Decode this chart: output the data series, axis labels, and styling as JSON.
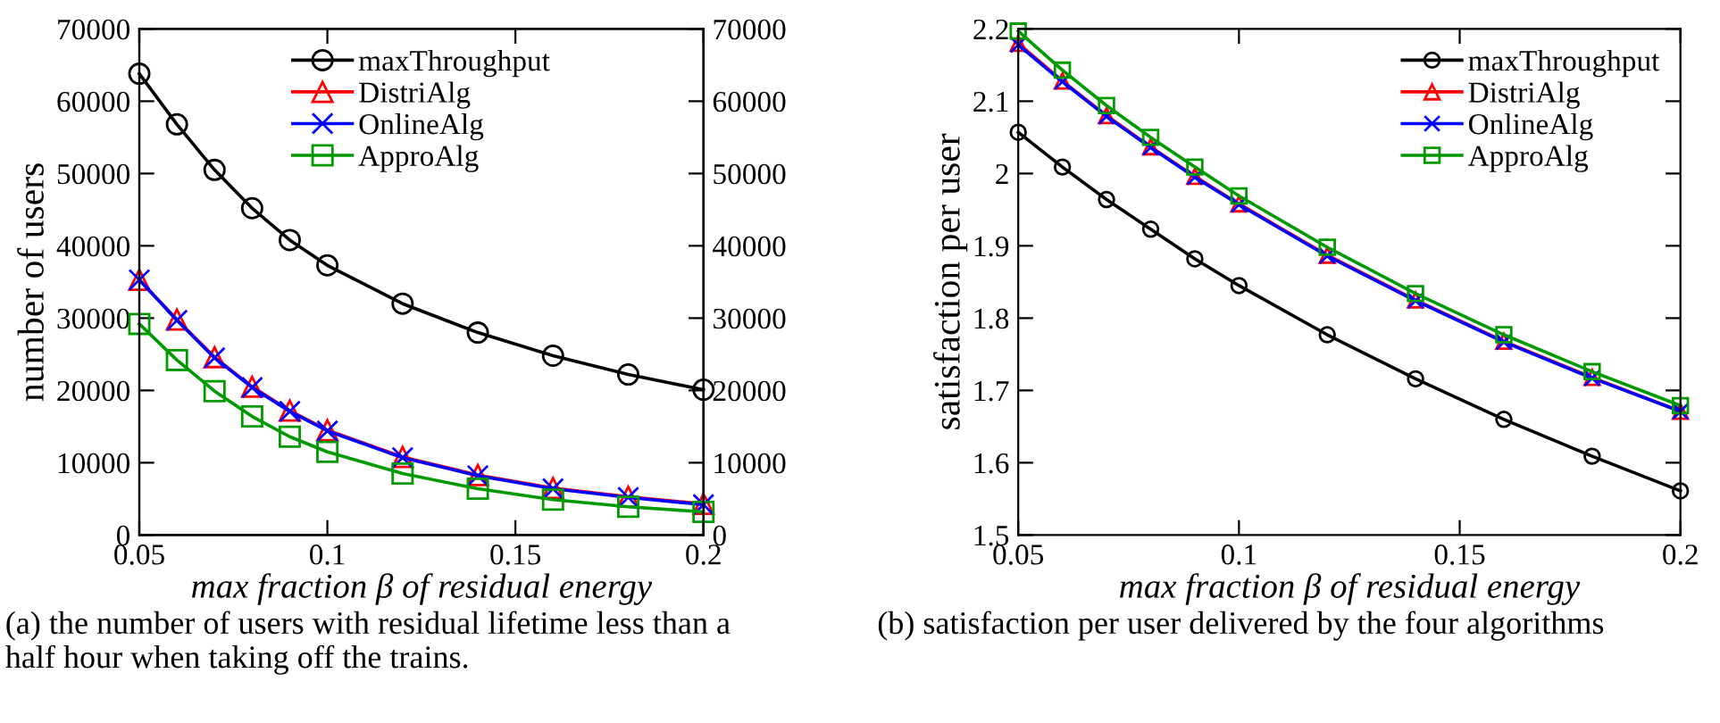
{
  "chart_data": [
    {
      "type": "line",
      "xlabel": "max fraction β of residual energy",
      "ylabel": "number of users",
      "x": [
        0.05,
        0.06,
        0.07,
        0.08,
        0.09,
        0.1,
        0.12,
        0.14,
        0.16,
        0.18,
        0.2
      ],
      "series": [
        {
          "name": "maxThroughput",
          "color": "#000000",
          "marker": "circle",
          "values": [
            63800,
            56800,
            50500,
            45200,
            40800,
            37300,
            32000,
            28000,
            24800,
            22200,
            20100
          ]
        },
        {
          "name": "DistriAlg",
          "color": "#ff0000",
          "marker": "triangle",
          "values": [
            35300,
            29800,
            24600,
            20500,
            17200,
            14500,
            10800,
            8300,
            6500,
            5300,
            4300
          ]
        },
        {
          "name": "OnlineAlg",
          "color": "#0000ff",
          "marker": "cross",
          "values": [
            35300,
            29700,
            24500,
            20400,
            17100,
            14400,
            10700,
            8200,
            6400,
            5200,
            4200
          ]
        },
        {
          "name": "ApproAlg",
          "color": "#009900",
          "marker": "square",
          "values": [
            29200,
            24200,
            19900,
            16400,
            13600,
            11500,
            8500,
            6400,
            4900,
            3900,
            3200
          ]
        }
      ],
      "xlim": [
        0.05,
        0.2
      ],
      "xticks": [
        0.05,
        0.1,
        0.15,
        0.2
      ],
      "ylim": [
        0,
        70000
      ],
      "yticks": [
        0,
        10000,
        20000,
        30000,
        40000,
        50000,
        60000,
        70000
      ],
      "y2lim": [
        0,
        70000
      ],
      "y2ticks": [
        0,
        10000,
        20000,
        30000,
        40000,
        50000,
        60000,
        70000
      ],
      "legend": "top",
      "grid": false,
      "annotations": [
        "(a) the number of users with residual lifetime less than a half hour when taking off the trains."
      ]
    },
    {
      "type": "line",
      "xlabel": "max fraction β of residual energy",
      "ylabel": "satisfaction per user",
      "x": [
        0.05,
        0.06,
        0.07,
        0.08,
        0.09,
        0.1,
        0.12,
        0.14,
        0.16,
        0.18,
        0.2
      ],
      "series": [
        {
          "name": "maxThroughput",
          "color": "#000000",
          "marker": "circle",
          "values": [
            2.057,
            2.009,
            1.964,
            1.923,
            1.882,
            1.845,
            1.777,
            1.716,
            1.66,
            1.609,
            1.561
          ]
        },
        {
          "name": "DistriAlg",
          "color": "#ff0000",
          "marker": "triangle",
          "values": [
            2.18,
            2.128,
            2.08,
            2.037,
            1.996,
            1.958,
            1.887,
            1.825,
            1.768,
            1.718,
            1.671
          ]
        },
        {
          "name": "OnlineAlg",
          "color": "#0000ff",
          "marker": "cross",
          "values": [
            2.178,
            2.127,
            2.079,
            2.036,
            1.995,
            1.957,
            1.886,
            1.824,
            1.767,
            1.717,
            1.671
          ]
        },
        {
          "name": "ApproAlg",
          "color": "#009900",
          "marker": "square",
          "values": [
            2.197,
            2.143,
            2.094,
            2.05,
            2.009,
            1.969,
            1.898,
            1.834,
            1.777,
            1.726,
            1.679
          ]
        }
      ],
      "xlim": [
        0.05,
        0.2
      ],
      "xticks": [
        0.05,
        0.1,
        0.15,
        0.2
      ],
      "ylim": [
        1.5,
        2.2
      ],
      "yticks": [
        1.5,
        1.6,
        1.7,
        1.8,
        1.9,
        2,
        2.1,
        2.2
      ],
      "legend": "top right",
      "grid": false,
      "annotations": [
        "(b) satisfaction per user delivered by the four algorithms"
      ]
    }
  ]
}
